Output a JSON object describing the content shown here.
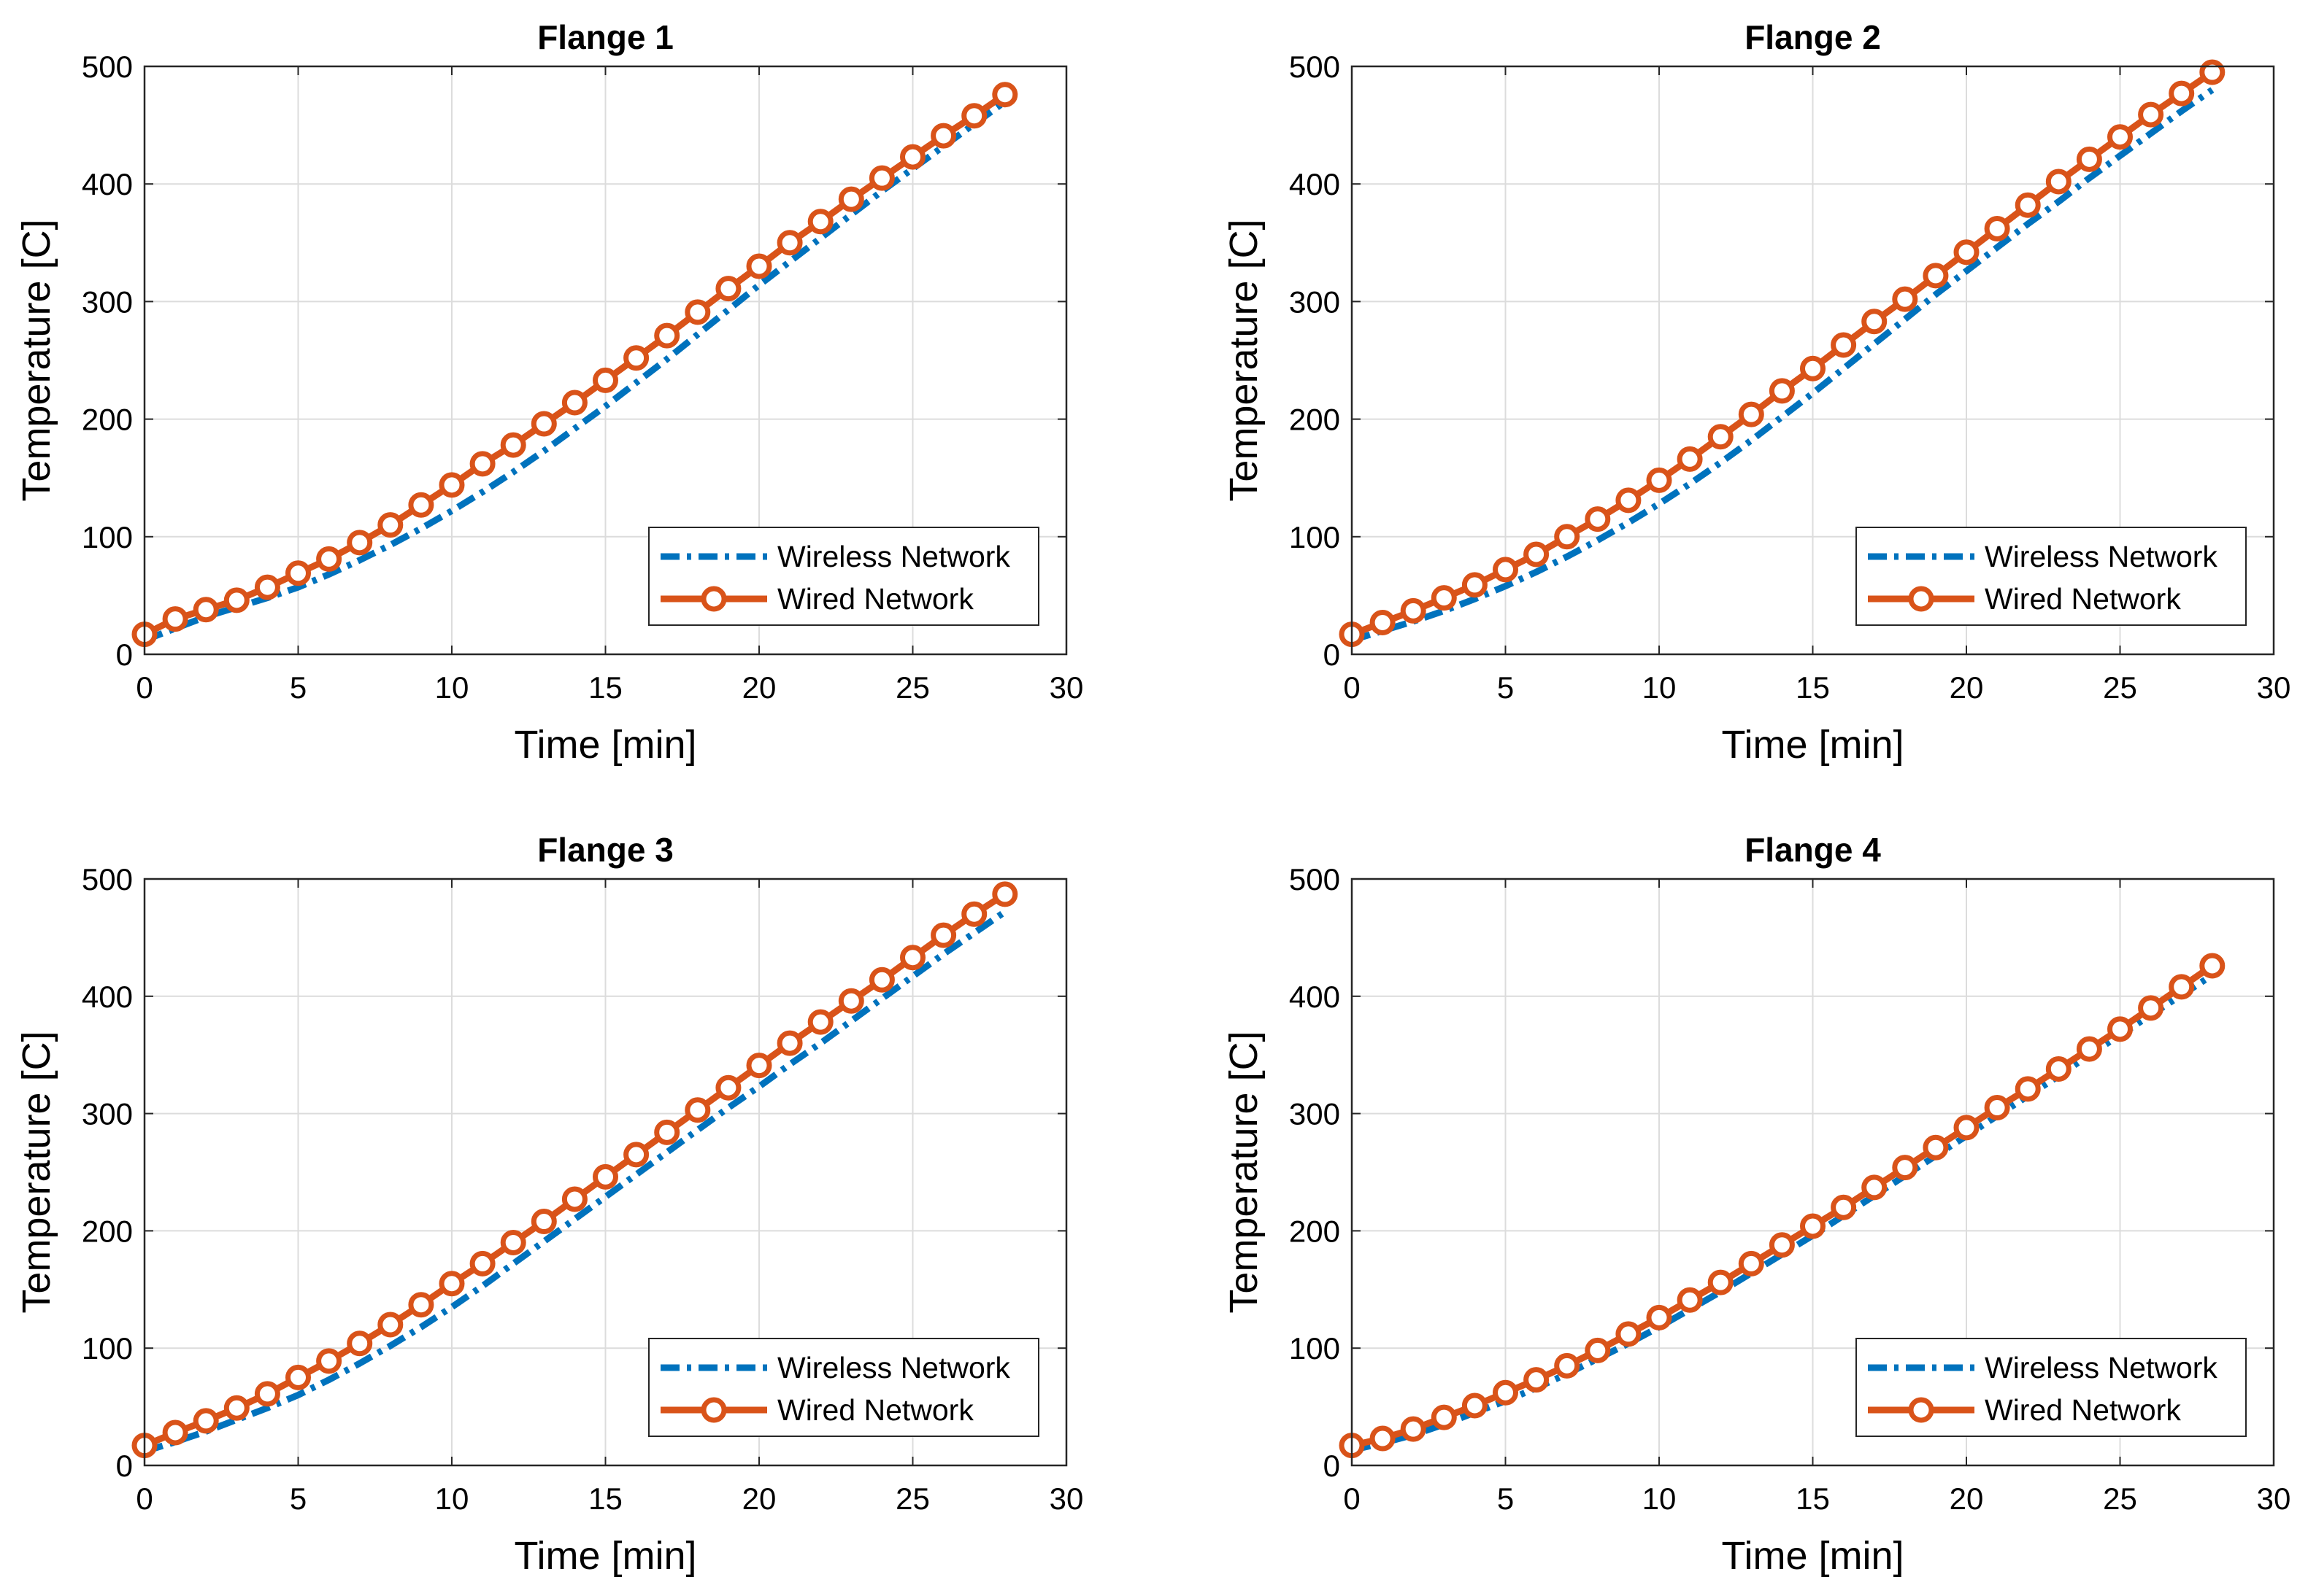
{
  "colors": {
    "wireless": "#0072BD",
    "wired": "#D95319",
    "grid": "#dcdcdc",
    "axis": "#262626"
  },
  "chart_data": [
    {
      "type": "line",
      "title": "Flange 1",
      "xlabel": "Time [min]",
      "ylabel": "Temperature [C]",
      "xlim": [
        0,
        30
      ],
      "ylim": [
        0,
        500
      ],
      "xticks": [
        0,
        5,
        10,
        15,
        20,
        25,
        30
      ],
      "yticks": [
        0,
        100,
        200,
        300,
        400,
        500
      ],
      "grid": true,
      "legend_position": "bottom-right",
      "x": [
        0,
        1,
        2,
        3,
        4,
        5,
        6,
        7,
        8,
        9,
        10,
        11,
        12,
        13,
        14,
        15,
        16,
        17,
        18,
        19,
        20,
        21,
        22,
        23,
        24,
        25,
        26,
        27,
        28
      ],
      "series": [
        {
          "name": "Wireless Network",
          "style": "dash-dot",
          "values": [
            12,
            22,
            32,
            40,
            48,
            57,
            68,
            80,
            93,
            107,
            122,
            138,
            155,
            173,
            192,
            211,
            231,
            251,
            272,
            293,
            314,
            334,
            354,
            374,
            394,
            413,
            432,
            451,
            470
          ]
        },
        {
          "name": "Wired Network",
          "style": "line-circle",
          "values": [
            17,
            30,
            38,
            46,
            57,
            69,
            81,
            95,
            110,
            127,
            144,
            162,
            178,
            196,
            214,
            233,
            252,
            271,
            291,
            311,
            330,
            350,
            368,
            387,
            405,
            423,
            441,
            458,
            476
          ]
        }
      ]
    },
    {
      "type": "line",
      "title": "Flange 2",
      "xlabel": "Time [min]",
      "ylabel": "Temperature [C]",
      "xlim": [
        0,
        30
      ],
      "ylim": [
        0,
        500
      ],
      "xticks": [
        0,
        5,
        10,
        15,
        20,
        25,
        30
      ],
      "yticks": [
        0,
        100,
        200,
        300,
        400,
        500
      ],
      "grid": true,
      "legend_position": "bottom-right",
      "x": [
        0,
        1,
        2,
        3,
        4,
        5,
        6,
        7,
        8,
        9,
        10,
        11,
        12,
        13,
        14,
        15,
        16,
        17,
        18,
        19,
        20,
        21,
        22,
        23,
        24,
        25,
        26,
        27,
        28
      ],
      "series": [
        {
          "name": "Wireless Network",
          "style": "dash-dot",
          "values": [
            12,
            20,
            28,
            37,
            47,
            58,
            70,
            83,
            97,
            112,
            128,
            145,
            163,
            182,
            202,
            222,
            243,
            264,
            285,
            306,
            326,
            346,
            366,
            385,
            405,
            424,
            443,
            462,
            480
          ]
        },
        {
          "name": "Wired Network",
          "style": "line-circle",
          "values": [
            17,
            27,
            37,
            48,
            59,
            72,
            85,
            100,
            115,
            131,
            148,
            166,
            185,
            204,
            224,
            243,
            263,
            283,
            302,
            322,
            342,
            362,
            382,
            402,
            421,
            440,
            459,
            477,
            495
          ]
        }
      ]
    },
    {
      "type": "line",
      "title": "Flange 3",
      "xlabel": "Time [min]",
      "ylabel": "Temperature [C]",
      "xlim": [
        0,
        30
      ],
      "ylim": [
        0,
        500
      ],
      "xticks": [
        0,
        5,
        10,
        15,
        20,
        25,
        30
      ],
      "yticks": [
        0,
        100,
        200,
        300,
        400,
        500
      ],
      "grid": true,
      "legend_position": "bottom-right",
      "x": [
        0,
        1,
        2,
        3,
        4,
        5,
        6,
        7,
        8,
        9,
        10,
        11,
        12,
        13,
        14,
        15,
        16,
        17,
        18,
        19,
        20,
        21,
        22,
        23,
        24,
        25,
        26,
        27,
        28
      ],
      "series": [
        {
          "name": "Wireless Network",
          "style": "dash-dot",
          "values": [
            12,
            20,
            29,
            39,
            49,
            60,
            73,
            87,
            102,
            118,
            135,
            153,
            172,
            191,
            210,
            229,
            248,
            267,
            286,
            305,
            323,
            342,
            360,
            379,
            398,
            417,
            436,
            454,
            472
          ]
        },
        {
          "name": "Wired Network",
          "style": "line-circle",
          "values": [
            17,
            28,
            38,
            49,
            61,
            75,
            89,
            104,
            120,
            137,
            155,
            172,
            190,
            208,
            227,
            246,
            265,
            284,
            303,
            322,
            341,
            360,
            378,
            396,
            414,
            433,
            452,
            470,
            487
          ]
        }
      ]
    },
    {
      "type": "line",
      "title": "Flange 4",
      "xlabel": "Time [min]",
      "ylabel": "Temperature [C]",
      "xlim": [
        0,
        30
      ],
      "ylim": [
        0,
        500
      ],
      "xticks": [
        0,
        5,
        10,
        15,
        20,
        25,
        30
      ],
      "yticks": [
        0,
        100,
        200,
        300,
        400,
        500
      ],
      "grid": true,
      "legend_position": "bottom-right",
      "x": [
        0,
        1,
        2,
        3,
        4,
        5,
        6,
        7,
        8,
        9,
        10,
        11,
        12,
        13,
        14,
        15,
        16,
        17,
        18,
        19,
        20,
        21,
        22,
        23,
        24,
        25,
        26,
        27,
        28
      ],
      "series": [
        {
          "name": "Wireless Network",
          "style": "dash-dot",
          "values": [
            13,
            19,
            26,
            35,
            45,
            55,
            66,
            78,
            91,
            104,
            118,
            133,
            148,
            164,
            180,
            196,
            213,
            230,
            247,
            264,
            281,
            298,
            315,
            332,
            350,
            367,
            384,
            401,
            418
          ]
        },
        {
          "name": "Wired Network",
          "style": "line-circle",
          "values": [
            17,
            23,
            31,
            41,
            51,
            62,
            73,
            85,
            98,
            112,
            126,
            141,
            156,
            172,
            188,
            204,
            220,
            237,
            254,
            271,
            288,
            305,
            321,
            338,
            355,
            372,
            390,
            408,
            426
          ]
        }
      ]
    }
  ]
}
